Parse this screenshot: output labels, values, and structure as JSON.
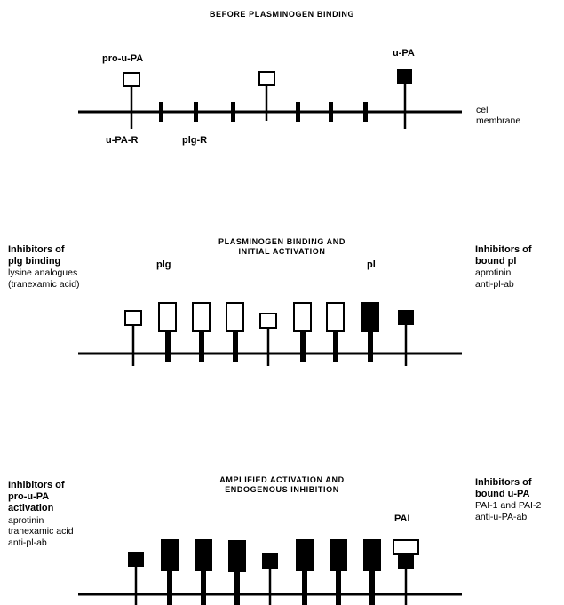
{
  "panel1": {
    "title": "BEFORE PLASMINOGEN BINDING",
    "labels": {
      "pro_upa": "pro-u-PA",
      "upa": "u-PA",
      "upa_r": "u-PA-R",
      "plg_r": "plg-R",
      "cell_membrane_1": "cell",
      "cell_membrane_2": "membrane"
    }
  },
  "panel2": {
    "title_line1": "PLASMINOGEN BINDING AND",
    "title_line2": "INITIAL ACTIVATION",
    "labels": {
      "plg": "plg",
      "pl": "pl"
    },
    "left": {
      "heading_line1": "Inhibitors of",
      "heading_line2": "plg binding",
      "item1": "lysine analogues",
      "item2": "(tranexamic acid)"
    },
    "right": {
      "heading_line1": "Inhibitors of",
      "heading_line2": "bound pl",
      "item1": "aprotinin",
      "item2": "anti-pl-ab"
    }
  },
  "panel3": {
    "title_line1": "AMPLIFIED ACTIVATION AND",
    "title_line2": "ENDOGENOUS INHIBITION",
    "labels": {
      "pai": "PAI"
    },
    "left": {
      "heading_line1": "Inhibitors of",
      "heading_line2": "pro-u-PA",
      "heading_line3": "activation",
      "item1": "aprotinin",
      "item2": "tranexamic acid",
      "item3": "anti-pl-ab"
    },
    "right": {
      "heading_line1": "Inhibitors of",
      "heading_line2": "bound u-PA",
      "item1": "PAI-1 and PAI-2",
      "item2": "anti-u-PA-ab"
    }
  }
}
